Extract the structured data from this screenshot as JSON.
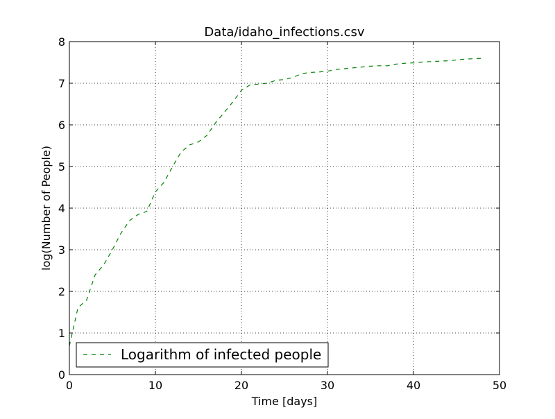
{
  "chart_data": {
    "type": "line",
    "title": "Data/idaho_infections.csv",
    "xlabel": "Time [days]",
    "ylabel": "log(Number of People)",
    "xlim": [
      0,
      50
    ],
    "ylim": [
      0,
      8
    ],
    "xticks": [
      0,
      10,
      20,
      30,
      40,
      50
    ],
    "yticks": [
      0,
      1,
      2,
      3,
      4,
      5,
      6,
      7,
      8
    ],
    "grid": true,
    "legend_position": "lower-left",
    "series": [
      {
        "name": "Logarithm of infected people",
        "color": "#008000",
        "line_style": "dashed",
        "x": [
          0,
          1,
          2,
          3,
          4,
          5,
          6,
          7,
          8,
          9,
          10,
          11,
          12,
          13,
          14,
          15,
          16,
          17,
          18,
          19,
          20,
          21,
          22,
          23,
          24,
          25,
          26,
          27,
          28,
          29,
          30,
          31,
          32,
          33,
          34,
          35,
          36,
          37,
          38,
          39,
          40,
          41,
          42,
          43,
          44,
          45,
          46,
          47,
          48
        ],
        "y": [
          0.69,
          1.61,
          1.79,
          2.4,
          2.64,
          3.0,
          3.4,
          3.7,
          3.85,
          3.92,
          4.39,
          4.62,
          5.0,
          5.35,
          5.52,
          5.59,
          5.75,
          6.05,
          6.3,
          6.55,
          6.83,
          6.96,
          6.98,
          7.0,
          7.07,
          7.09,
          7.14,
          7.23,
          7.26,
          7.27,
          7.29,
          7.33,
          7.35,
          7.37,
          7.39,
          7.41,
          7.42,
          7.42,
          7.46,
          7.48,
          7.49,
          7.51,
          7.52,
          7.53,
          7.54,
          7.56,
          7.58,
          7.59,
          7.6
        ]
      }
    ]
  }
}
